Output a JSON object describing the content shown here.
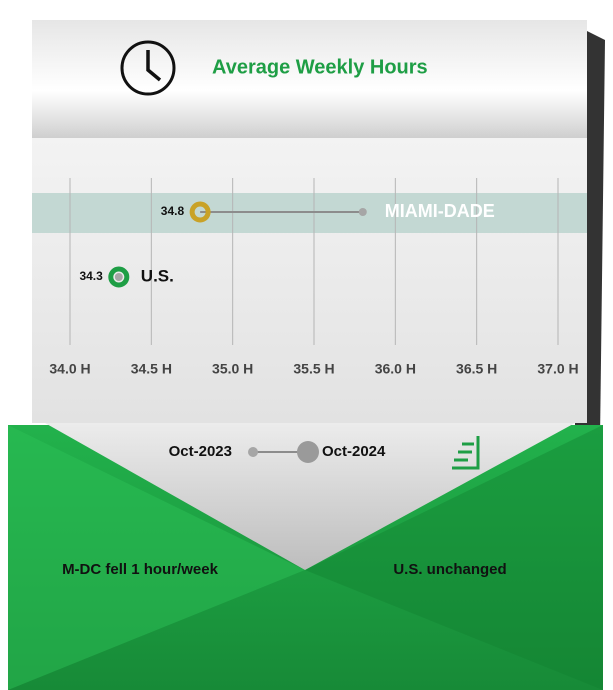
{
  "chart_data": {
    "type": "dumbbell",
    "title": "Average Weekly Hours",
    "categories": [
      "MIAMI-DADE",
      "U.S."
    ],
    "category_colors": [
      "#c9a227",
      "#1e9e45"
    ],
    "category_label_colors": [
      "#ffffff",
      "#111111"
    ],
    "series": [
      {
        "name": "Oct-2023",
        "color": "#a6a6a6",
        "values": [
          35.8,
          34.3
        ]
      },
      {
        "name": "Oct-2024",
        "color": "#9a9a9a",
        "values": [
          34.8,
          34.3
        ]
      }
    ],
    "xlim": [
      34.0,
      37.0
    ],
    "xticks": [
      {
        "value": 34.0,
        "label": "34.0 H"
      },
      {
        "value": 34.5,
        "label": "34.5 H"
      },
      {
        "value": 35.0,
        "label": "35.0 H"
      },
      {
        "value": 35.5,
        "label": "35.5 H"
      },
      {
        "value": 36.0,
        "label": "36.0 H"
      },
      {
        "value": 36.5,
        "label": "36.5 H"
      },
      {
        "value": 37.0,
        "label": "37.0 H"
      }
    ],
    "grid": true,
    "annotations": [
      "M-DC fell 1 hour/week",
      "U.S. unchanged"
    ]
  }
}
